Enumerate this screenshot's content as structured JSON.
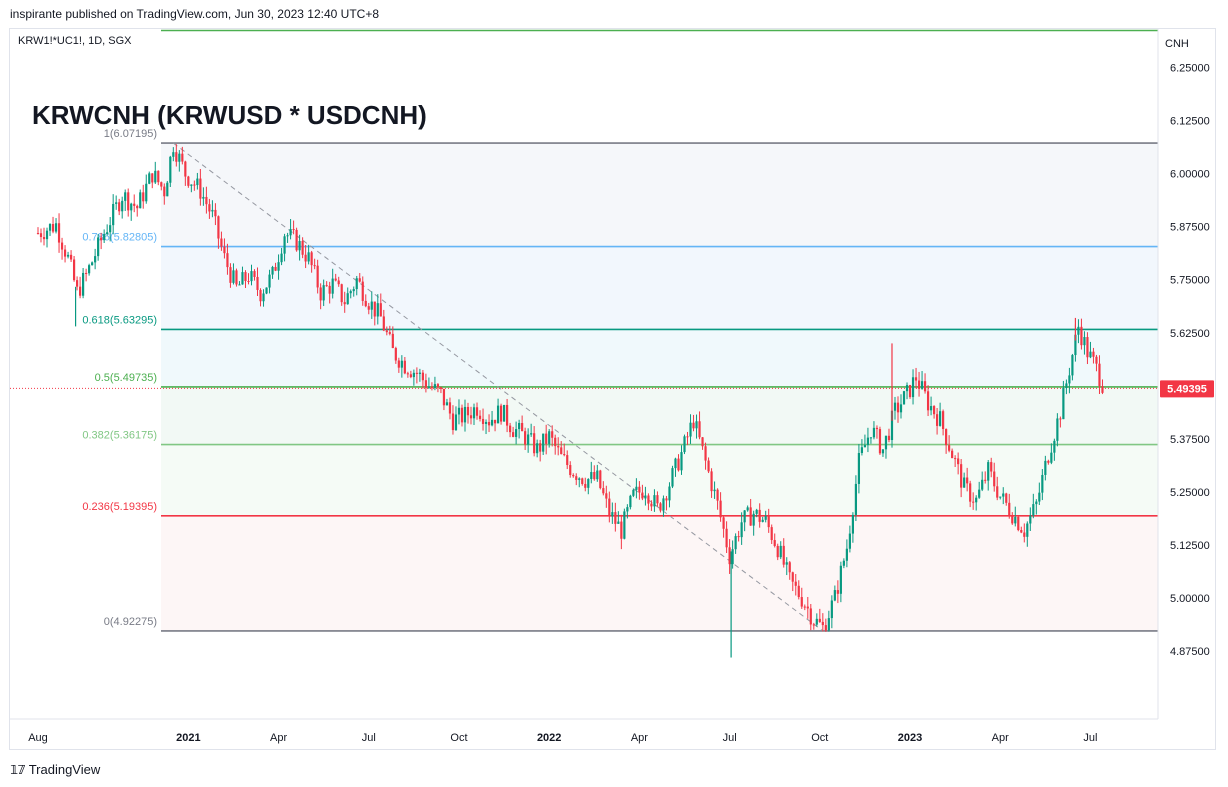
{
  "header": {
    "published": "inspirante published on TradingView.com, Jun 30, 2023 12:40 UTC+8"
  },
  "footer": {
    "brand": "TradingView",
    "logo_icon": "tradingview-logo-icon"
  },
  "chart_data": {
    "type": "candlestick",
    "symbol": "KRW1!*UC1!, 1D, SGX",
    "title": "KRWCNH (KRWUSD * USDCNH)",
    "currency_label": "CNH",
    "ylim": [
      4.8,
      6.33
    ],
    "y_ticks": [
      "6.25000",
      "6.12500",
      "6.00000",
      "5.87500",
      "5.75000",
      "5.62500",
      "5.50000",
      "5.37500",
      "5.25000",
      "5.12500",
      "5.00000",
      "4.87500"
    ],
    "x_ticks": [
      {
        "label": "Aug",
        "t": 0.0
      },
      {
        "label": "2021",
        "t": 5.0,
        "bold": true
      },
      {
        "label": "Apr",
        "t": 8.0
      },
      {
        "label": "Jul",
        "t": 11.0
      },
      {
        "label": "Oct",
        "t": 14.0
      },
      {
        "label": "2022",
        "t": 17.0,
        "bold": true
      },
      {
        "label": "Apr",
        "t": 20.0
      },
      {
        "label": "Jul",
        "t": 23.0
      },
      {
        "label": "Oct",
        "t": 26.0
      },
      {
        "label": "2023",
        "t": 29.0,
        "bold": true
      },
      {
        "label": "Apr",
        "t": 32.0
      },
      {
        "label": "Jul",
        "t": 35.0
      }
    ],
    "last_price": 5.49395,
    "last_price_label": "5.49395",
    "fib_levels": [
      {
        "label": "1(6.07195)",
        "value": 6.07195,
        "color": "#787b86"
      },
      {
        "label": "0.786(5.82805)",
        "value": 5.82805,
        "color": "#64b5f6"
      },
      {
        "label": "0.618(5.63295)",
        "value": 5.63295,
        "color": "#089981"
      },
      {
        "label": "0.5(5.49735)",
        "value": 5.49735,
        "color": "#4caf50"
      },
      {
        "label": "0.382(5.36175)",
        "value": 5.36175,
        "color": "#81c784"
      },
      {
        "label": "0.236(5.19395)",
        "value": 5.19395,
        "color": "#f23645"
      },
      {
        "label": "0(4.92275)",
        "value": 4.92275,
        "color": "#787b86"
      }
    ],
    "top_line_value": 6.34,
    "fib_start": {
      "t": 4.5,
      "value": 6.07195
    },
    "fib_end": {
      "t": 26.1,
      "value": 4.92275
    },
    "price_path": [
      [
        0.0,
        5.86
      ],
      [
        0.6,
        5.88
      ],
      [
        1.0,
        5.8
      ],
      [
        1.3,
        5.72
      ],
      [
        1.6,
        5.76
      ],
      [
        2.2,
        5.86
      ],
      [
        2.8,
        5.95
      ],
      [
        3.3,
        5.92
      ],
      [
        3.8,
        6.0
      ],
      [
        4.2,
        5.96
      ],
      [
        4.5,
        6.07
      ],
      [
        4.9,
        6.0
      ],
      [
        5.4,
        5.96
      ],
      [
        5.8,
        5.9
      ],
      [
        6.2,
        5.8
      ],
      [
        6.6,
        5.73
      ],
      [
        7.0,
        5.76
      ],
      [
        7.4,
        5.72
      ],
      [
        7.8,
        5.76
      ],
      [
        8.2,
        5.86
      ],
      [
        8.6,
        5.84
      ],
      [
        9.0,
        5.8
      ],
      [
        9.4,
        5.72
      ],
      [
        9.8,
        5.74
      ],
      [
        10.2,
        5.7
      ],
      [
        10.6,
        5.75
      ],
      [
        11.0,
        5.7
      ],
      [
        11.4,
        5.66
      ],
      [
        11.8,
        5.58
      ],
      [
        12.2,
        5.55
      ],
      [
        12.6,
        5.53
      ],
      [
        13.0,
        5.5
      ],
      [
        13.4,
        5.48
      ],
      [
        13.8,
        5.42
      ],
      [
        14.2,
        5.43
      ],
      [
        14.6,
        5.45
      ],
      [
        15.0,
        5.42
      ],
      [
        15.4,
        5.44
      ],
      [
        15.8,
        5.4
      ],
      [
        16.2,
        5.38
      ],
      [
        16.6,
        5.35
      ],
      [
        17.0,
        5.38
      ],
      [
        17.4,
        5.33
      ],
      [
        17.8,
        5.3
      ],
      [
        18.2,
        5.28
      ],
      [
        18.6,
        5.28
      ],
      [
        19.0,
        5.2
      ],
      [
        19.4,
        5.16
      ],
      [
        19.8,
        5.24
      ],
      [
        20.2,
        5.26
      ],
      [
        20.6,
        5.21
      ],
      [
        21.0,
        5.27
      ],
      [
        21.4,
        5.34
      ],
      [
        21.8,
        5.42
      ],
      [
        22.2,
        5.32
      ],
      [
        22.6,
        5.22
      ],
      [
        23.0,
        5.1
      ],
      [
        23.4,
        5.18
      ],
      [
        23.8,
        5.2
      ],
      [
        24.2,
        5.18
      ],
      [
        24.6,
        5.12
      ],
      [
        25.0,
        5.04
      ],
      [
        25.4,
        5.0
      ],
      [
        25.8,
        4.95
      ],
      [
        26.1,
        4.93
      ],
      [
        26.5,
        5.0
      ],
      [
        26.9,
        5.12
      ],
      [
        27.3,
        5.32
      ],
      [
        27.7,
        5.4
      ],
      [
        28.1,
        5.35
      ],
      [
        28.5,
        5.44
      ],
      [
        28.9,
        5.48
      ],
      [
        29.2,
        5.52
      ],
      [
        29.6,
        5.46
      ],
      [
        30.0,
        5.42
      ],
      [
        30.4,
        5.34
      ],
      [
        30.8,
        5.26
      ],
      [
        31.2,
        5.23
      ],
      [
        31.6,
        5.3
      ],
      [
        32.0,
        5.24
      ],
      [
        32.4,
        5.2
      ],
      [
        32.8,
        5.16
      ],
      [
        33.2,
        5.22
      ],
      [
        33.6,
        5.34
      ],
      [
        34.0,
        5.44
      ],
      [
        34.3,
        5.54
      ],
      [
        34.6,
        5.64
      ],
      [
        34.9,
        5.58
      ],
      [
        35.2,
        5.54
      ],
      [
        35.5,
        5.49
      ]
    ],
    "spikes": [
      {
        "t": 1.25,
        "low": 5.64
      },
      {
        "t": 23.05,
        "low": 4.86
      },
      {
        "t": 28.4,
        "high": 5.6
      },
      {
        "t": 34.5,
        "high": 5.66
      }
    ]
  }
}
